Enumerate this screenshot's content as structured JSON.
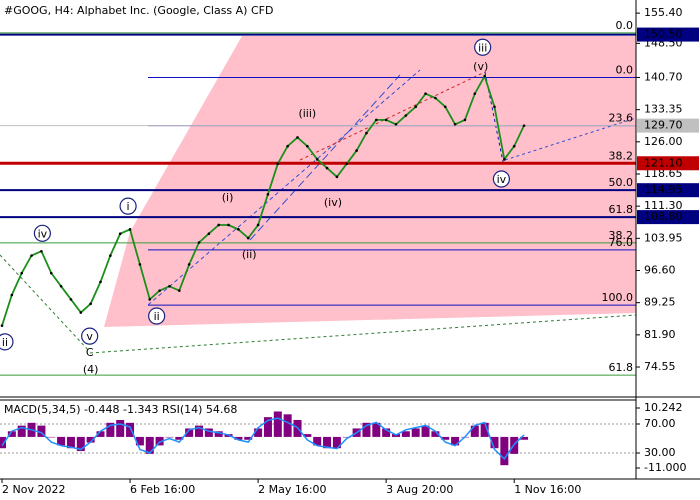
{
  "chart_data": [
    {
      "type": "line",
      "title": "#GOOG, H4:  Alphabet Inc. (Google, Class A) CFD",
      "categories": [
        "2 Nov 2022",
        null,
        null,
        null,
        null,
        null,
        null,
        null,
        null,
        null,
        null,
        null,
        null,
        "6 Feb 16:00",
        null,
        null,
        null,
        null,
        null,
        null,
        null,
        null,
        null,
        null,
        null,
        null,
        "2 May 16:00",
        null,
        null,
        null,
        null,
        null,
        null,
        null,
        null,
        null,
        null,
        null,
        null,
        "3 Aug 20:00",
        null,
        null,
        null,
        null,
        null,
        null,
        null,
        null,
        null,
        null,
        null,
        null,
        "1 Nov 16:00",
        null,
        null,
        null,
        null,
        null,
        null,
        null,
        null,
        null,
        null,
        null,
        null
      ],
      "values": [
        84,
        91,
        96,
        100,
        101,
        96,
        93,
        90,
        87,
        89,
        94,
        100,
        105,
        106,
        98,
        90,
        92,
        93,
        92,
        98,
        103,
        105,
        107,
        107,
        106,
        104,
        107,
        114,
        121,
        125,
        127,
        125,
        122,
        120,
        118,
        121,
        124,
        128,
        131,
        131,
        130,
        132,
        134,
        137,
        136,
        134,
        130,
        131,
        137,
        141,
        134,
        122,
        125,
        129.7,
        null,
        null,
        null,
        null,
        null,
        null,
        null,
        null,
        null,
        null,
        null
      ],
      "color": "#1a8f1a",
      "ylim": [
        67.7,
        158.4
      ],
      "yticks": [
        {
          "value": 155.4,
          "label": "155.40"
        },
        {
          "value": 148.5,
          "label": "148.50"
        },
        {
          "value": 140.7,
          "label": "140.70"
        },
        133.35,
        {
          "value": 126,
          "label": "126.00"
        },
        118.65,
        {
          "value": 111.3,
          "label": "111.30"
        },
        103.95,
        {
          "value": 96.6,
          "label": "96.60"
        },
        89.25,
        {
          "value": 81.9,
          "label": "81.90"
        },
        74.55
      ],
      "levels": [
        {
          "value": 150.5,
          "color": "#000080",
          "width": 2
        },
        {
          "value": 129.7,
          "color": "#c0c0c0",
          "width": 1
        },
        {
          "value": 121.1,
          "color": "#c00000",
          "width": 3
        },
        {
          "value": 114.95,
          "color": "#000080",
          "width": 2
        },
        {
          "value": 108.8,
          "color": "#000080",
          "width": 2
        }
      ],
      "price_labels": [
        {
          "value": 150.5,
          "label": "150.50",
          "color": "#000080",
          "text_color": "#ffffff"
        },
        {
          "value": 129.7,
          "label": "129.70",
          "color": "#c0c0c0",
          "text_color": "#ffffff"
        },
        {
          "value": 121.1,
          "label": "121.10",
          "color": "#c00000",
          "text_color": "#ffffff"
        },
        {
          "value": 114.95,
          "label": "114.95",
          "color": "#000080",
          "text_color": "#ffffff"
        },
        {
          "value": 108.8,
          "label": "108.80",
          "color": "#000080",
          "text_color": "#ffffff"
        }
      ],
      "fib_blue": {
        "color": "#1010c0",
        "levels": [
          {
            "label": "0.0",
            "value": 140.7
          },
          {
            "label": "23.6",
            "value": 129.7
          },
          {
            "label": "38.2",
            "value": 121.1
          },
          {
            "label": "50.0",
            "value": 114.95
          },
          {
            "label": "61.8",
            "value": 108.8
          },
          {
            "label": "76.0",
            "value": 101.3
          },
          {
            "label": "100.0",
            "value": 88.7
          }
        ]
      },
      "fib_green": {
        "color": "#3a9a3a",
        "levels": [
          {
            "label": "0.0",
            "value": 150.9
          },
          {
            "label": "38.2",
            "value": 102.9
          },
          {
            "label": "61.8",
            "value": 72.7
          }
        ]
      },
      "annotations": [
        {
          "text": "ii",
          "x": 0.3,
          "y": 80.3,
          "color": "#1a237e",
          "circled": true
        },
        {
          "text": "iv",
          "x": 4.1,
          "y": 105.1,
          "color": "#1a237e",
          "circled": true
        },
        {
          "text": "v",
          "x": 8.9,
          "y": 81.6,
          "color": "#1a237e",
          "circled": true
        },
        {
          "text": "i",
          "x": 12.8,
          "y": 111.3,
          "color": "#1a237e",
          "circled": true
        },
        {
          "text": "ii",
          "x": 15.7,
          "y": 86.2,
          "color": "#1a237e",
          "circled": true
        },
        {
          "text": "iii",
          "x": 48.8,
          "y": 147.6,
          "color": "#1a237e",
          "circled": true
        },
        {
          "text": "iv",
          "x": 50.7,
          "y": 117.5,
          "color": "#1a237e",
          "circled": true
        },
        {
          "text": "(i)",
          "x": 22.9,
          "y": 113.4,
          "color": "#d02020",
          "circled": false
        },
        {
          "text": "(ii)",
          "x": 25.1,
          "y": 100.4,
          "color": "#d02020",
          "circled": false
        },
        {
          "text": "(iii)",
          "x": 31,
          "y": 132.6,
          "color": "#d02020",
          "circled": false
        },
        {
          "text": "(iv)",
          "x": 33.6,
          "y": 112.2,
          "color": "#d02020",
          "circled": false
        },
        {
          "text": "(v)",
          "x": 48.6,
          "y": 143.3,
          "color": "#d02020",
          "circled": false
        },
        {
          "text": "C",
          "x": 8.9,
          "y": 78,
          "color": "#d02020",
          "circled": false
        },
        {
          "text": "(4)",
          "x": 9,
          "y": 74.1,
          "color": "#2e7d32",
          "circled": false
        }
      ]
    },
    {
      "type": "macd",
      "title": "MACD(5,34,5) -0.448 -1.343 RSI(14) 54.68",
      "values": [
        -4,
        2,
        4,
        5,
        4,
        0,
        -3,
        -4,
        -5,
        -2,
        2,
        5,
        6,
        5,
        -3,
        -6,
        -3,
        0,
        -1,
        3,
        4,
        3,
        2,
        1,
        -1,
        -1,
        3,
        7,
        9,
        8,
        6,
        1,
        -3,
        -4,
        -4,
        0,
        3,
        5,
        5,
        3,
        1,
        2,
        3,
        4,
        2,
        -1,
        -3,
        0,
        4,
        5,
        -4,
        -10,
        -6,
        -1
      ],
      "color": "#800080",
      "rsi": [
        40,
        60,
        65,
        62,
        58,
        45,
        40,
        38,
        35,
        45,
        60,
        68,
        70,
        66,
        35,
        30,
        45,
        50,
        45,
        62,
        65,
        60,
        58,
        55,
        48,
        45,
        65,
        75,
        78,
        72,
        65,
        48,
        40,
        38,
        36,
        50,
        58,
        68,
        72,
        62,
        55,
        62,
        65,
        68,
        60,
        45,
        40,
        52,
        68,
        72,
        35,
        22,
        42,
        55
      ],
      "rsi_color": "#1e90ff",
      "ylim": [
        -14.54,
        13.07
      ],
      "yticks": [
        10.242,
        {
          "value": -11,
          "label": "-11.000"
        }
      ],
      "y2lim": [
        -4.5,
        103.1
      ],
      "y2ticks": [
        {
          "value": 70,
          "label": "70.00"
        },
        {
          "value": 30,
          "label": "30.00"
        }
      ]
    }
  ]
}
